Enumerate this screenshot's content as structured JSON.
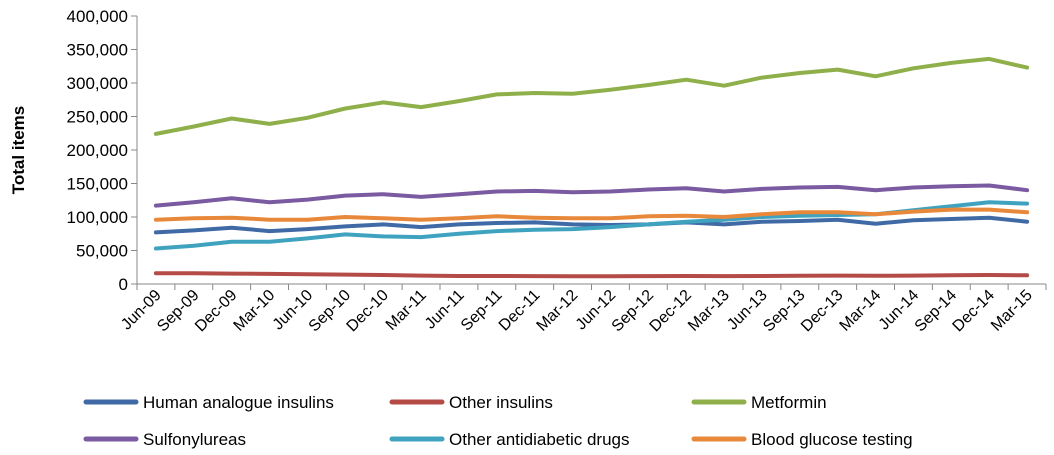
{
  "chart_data": {
    "type": "line",
    "title": "",
    "xlabel": "",
    "ylabel": "Total items",
    "ylim": [
      0,
      400000
    ],
    "yticks": [
      0,
      50000,
      100000,
      150000,
      200000,
      250000,
      300000,
      350000,
      400000
    ],
    "ytick_labels": [
      "0",
      "50,000",
      "100,000",
      "150,000",
      "200,000",
      "250,000",
      "300,000",
      "350,000",
      "400,000"
    ],
    "grid": false,
    "legend_position": "bottom",
    "x": [
      "Jun-09",
      "Sep-09",
      "Dec-09",
      "Mar-10",
      "Jun-10",
      "Sep-10",
      "Dec-10",
      "Mar-11",
      "Jun-11",
      "Sep-11",
      "Dec-11",
      "Mar-12",
      "Jun-12",
      "Sep-12",
      "Dec-12",
      "Mar-13",
      "Jun-13",
      "Sep-13",
      "Dec-13",
      "Mar-14",
      "Jun-14",
      "Sep-14",
      "Dec-14",
      "Mar-15"
    ],
    "series": [
      {
        "name": "Human analogue insulins",
        "color": "#3f6aa6",
        "values": [
          77000,
          80000,
          84000,
          79000,
          82000,
          86000,
          89000,
          85000,
          89000,
          91000,
          92000,
          89000,
          88000,
          89000,
          92000,
          89000,
          93000,
          94000,
          96000,
          90000,
          95000,
          97000,
          99000,
          93000
        ]
      },
      {
        "name": "Other insulins",
        "color": "#b54b47",
        "values": [
          16000,
          16000,
          15500,
          15000,
          14500,
          14000,
          13500,
          12500,
          12000,
          12000,
          11800,
          11500,
          11500,
          11800,
          12000,
          11800,
          12000,
          12200,
          12500,
          12200,
          12500,
          13000,
          13500,
          13000
        ]
      },
      {
        "name": "Metformin",
        "color": "#8faf4b",
        "values": [
          224000,
          235000,
          247000,
          239000,
          248000,
          262000,
          271000,
          264000,
          273000,
          283000,
          285000,
          284000,
          290000,
          297000,
          305000,
          296000,
          308000,
          315000,
          320000,
          310000,
          322000,
          330000,
          336000,
          323000
        ]
      },
      {
        "name": "Sulfonylureas",
        "color": "#7a5aa0",
        "values": [
          117000,
          122000,
          128000,
          122000,
          126000,
          132000,
          134000,
          130000,
          134000,
          138000,
          139000,
          137000,
          138000,
          141000,
          143000,
          138000,
          142000,
          144000,
          145000,
          140000,
          144000,
          146000,
          147000,
          140000
        ]
      },
      {
        "name": "Other antidiabetic drugs",
        "color": "#3fa3bf",
        "values": [
          53000,
          57000,
          63000,
          63000,
          68000,
          74000,
          71000,
          70000,
          75000,
          79000,
          81000,
          82000,
          85000,
          89000,
          93000,
          96000,
          100000,
          102000,
          103000,
          104000,
          110000,
          116000,
          122000,
          120000
        ]
      },
      {
        "name": "Blood glucose testing",
        "color": "#e8883a",
        "values": [
          96000,
          98000,
          99000,
          96000,
          96000,
          100000,
          98000,
          96000,
          98000,
          101000,
          99000,
          98000,
          98000,
          101000,
          102000,
          100000,
          104000,
          107000,
          107000,
          104000,
          108000,
          111000,
          111000,
          107000
        ]
      }
    ]
  }
}
